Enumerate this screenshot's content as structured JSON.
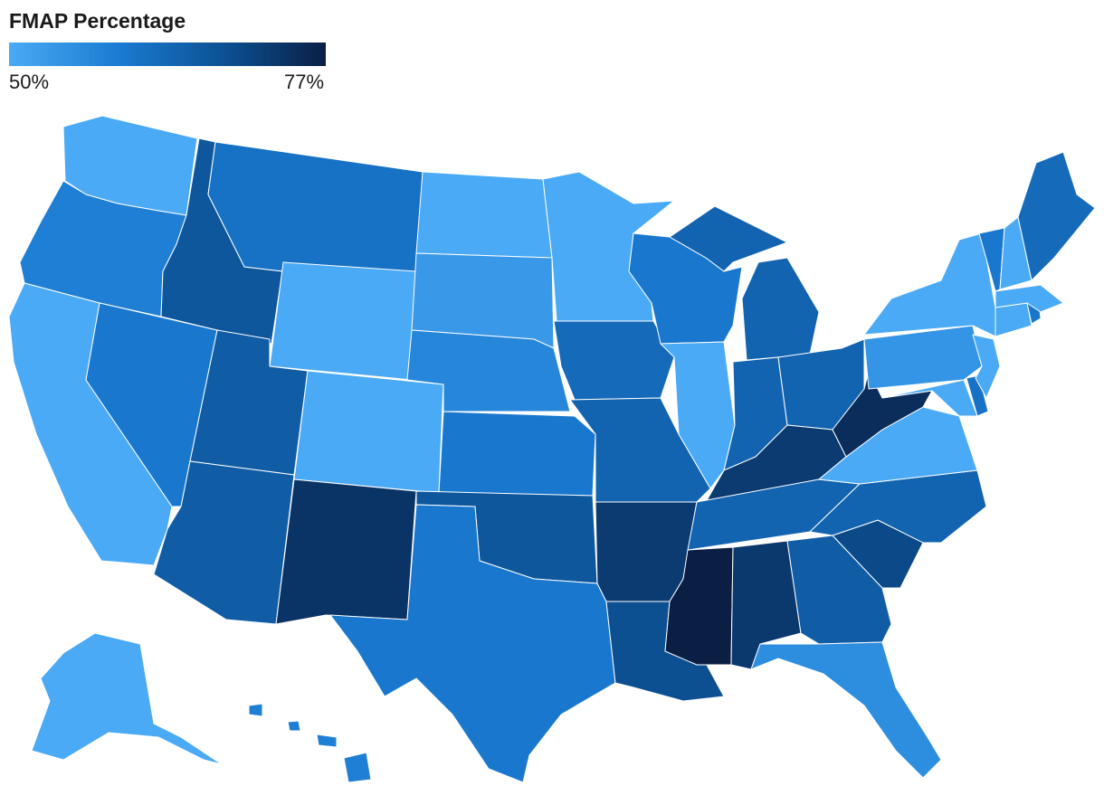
{
  "legend": {
    "title": "FMAP Percentage",
    "min_label": "50%",
    "max_label": "77%",
    "color_stops": [
      "#4aaaf5",
      "#1a7ad1",
      "#0b4e8f",
      "#0b1f45"
    ]
  },
  "map_data": {
    "type": "choropleth",
    "region": "United States",
    "value_range": [
      50,
      77
    ],
    "shading_level_by_state": {
      "WA": 0.0,
      "OR": 0.3,
      "CA": 0.0,
      "NV": 0.35,
      "ID": 0.6,
      "MT": 0.4,
      "WY": 0.0,
      "UT": 0.55,
      "AZ": 0.55,
      "CO": 0.0,
      "NM": 0.85,
      "ND": 0.0,
      "SD": 0.12,
      "NE": 0.25,
      "KS": 0.35,
      "OK": 0.6,
      "TX": 0.35,
      "MN": 0.0,
      "IA": 0.45,
      "MO": 0.5,
      "AR": 0.8,
      "LA": 0.65,
      "WI": 0.35,
      "IL": 0.0,
      "MI": 0.5,
      "IN": 0.5,
      "OH": 0.5,
      "KY": 0.8,
      "TN": 0.5,
      "MS": 1.0,
      "AL": 0.82,
      "GA": 0.55,
      "FL": 0.2,
      "SC": 0.7,
      "NC": 0.5,
      "VA": 0.0,
      "WV": 0.9,
      "PA": 0.15,
      "NY": 0.0,
      "NJ": 0.0,
      "MD": 0.0,
      "DE": 0.4,
      "CT": 0.0,
      "RI": 0.35,
      "MA": 0.0,
      "VT": 0.35,
      "NH": 0.0,
      "ME": 0.45,
      "AK": 0.0,
      "HI": 0.3
    }
  }
}
